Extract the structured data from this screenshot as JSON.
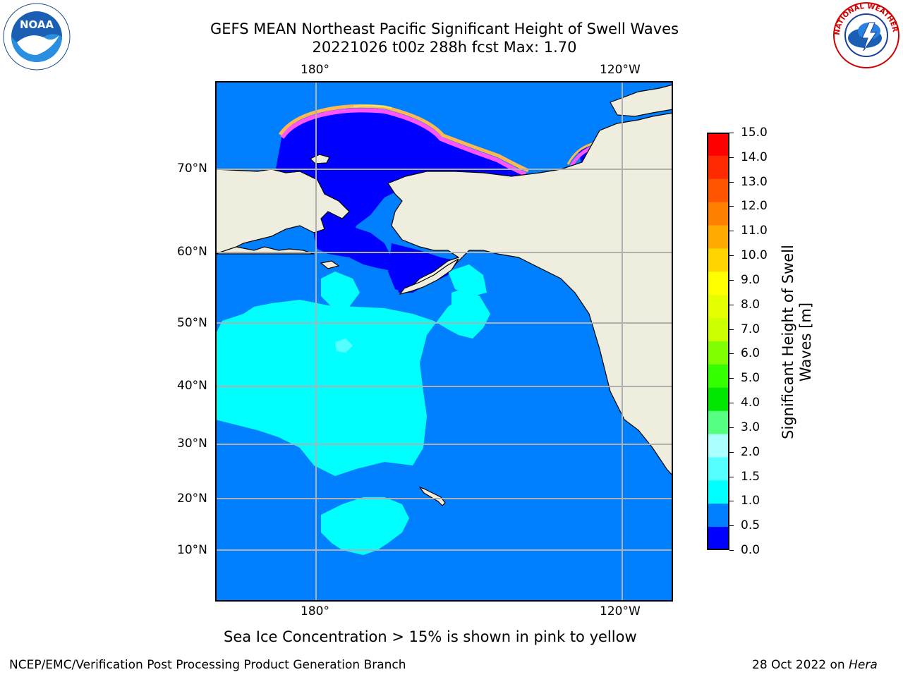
{
  "header": {
    "title_line1": "GEFS MEAN Northeast Pacific Significant Height of Swell Waves",
    "title_line2": "20221026 t00z 288h fcst   Max: 1.70"
  },
  "logos": {
    "left": {
      "icon": "noaa-logo-icon",
      "text": "NOAA"
    },
    "right": {
      "icon": "nws-logo-icon",
      "ring_text": "NATIONAL WEATHER SERVICE"
    }
  },
  "map": {
    "lon_labels_top": [
      "180°",
      "120°W"
    ],
    "lon_labels_bottom": [
      "180°",
      "120°W"
    ],
    "lat_labels": [
      "70°N",
      "60°N",
      "50°N",
      "40°N",
      "30°N",
      "20°N",
      "10°N"
    ],
    "colors": {
      "ocean_low": "#0000ff",
      "ocean": "#0080ff",
      "swell_1_5": "#00ffff",
      "swell_2_0": "#55ffff",
      "land": "#efedde",
      "ice_pink": "#ff55ff",
      "ice_orange": "#ffb84d",
      "ice_yellow": "#ffe866",
      "grid": "#b0b0b0"
    }
  },
  "colorbar": {
    "label_line1": "Significant Height of Swell",
    "label_line2": "Waves [m]",
    "ticks": [
      "15.0",
      "14.0",
      "13.0",
      "12.0",
      "11.0",
      "10.0",
      "9.0",
      "8.0",
      "7.0",
      "6.0",
      "5.0",
      "4.0",
      "3.0",
      "2.0",
      "1.5",
      "1.0",
      "0.5",
      "0.0"
    ],
    "colors_top_to_bottom": [
      "#ff0000",
      "#ff2a00",
      "#ff5500",
      "#ff8000",
      "#ffaa00",
      "#ffd500",
      "#ffff00",
      "#e6ff00",
      "#ccff00",
      "#80ff00",
      "#33ff00",
      "#00e600",
      "#55ff80",
      "#aaffff",
      "#55ffff",
      "#00ffff",
      "#0080ff",
      "#0000ff"
    ]
  },
  "caption": "Sea Ice Concentration > 15% is shown in pink to yellow",
  "footer": {
    "left": "NCEP/EMC/Verification Post Processing Product Generation Branch",
    "right_prefix": "28 Oct 2022 on ",
    "right_machine": "Hera"
  }
}
